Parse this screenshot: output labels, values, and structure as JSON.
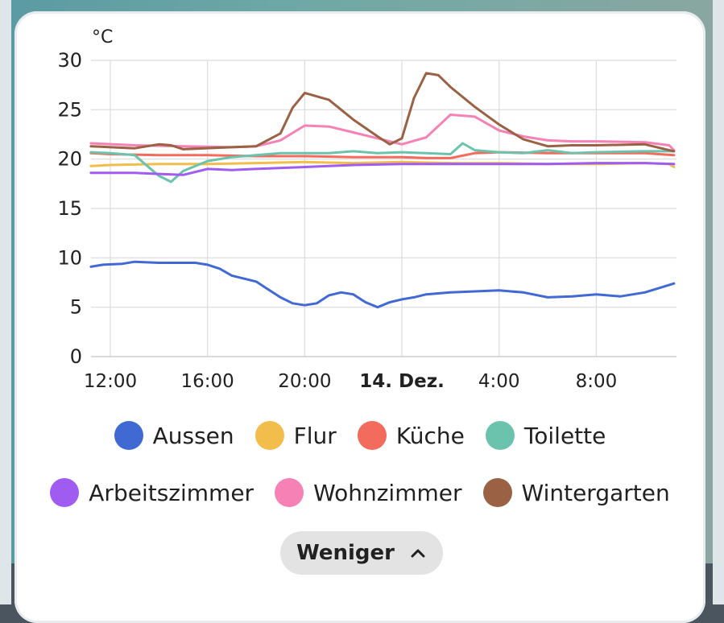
{
  "chart_data": {
    "type": "line",
    "ylabel": "°C",
    "ylim": [
      0,
      30
    ],
    "yticks": [
      "0",
      "5",
      "10",
      "15",
      "20",
      "25",
      "30"
    ],
    "xticks": [
      "12:00",
      "16:00",
      "20:00",
      "14. Dez.",
      "4:00",
      "8:00"
    ],
    "x_hours": [
      0,
      4,
      8,
      12,
      16,
      20
    ],
    "x_range": [
      -0.8,
      23.2
    ],
    "grid": true,
    "series": [
      {
        "name": "Aussen",
        "color": "#4169d4",
        "x": [
          -0.8,
          -0.3,
          0.5,
          1,
          2,
          3,
          3.5,
          4,
          4.5,
          5,
          6,
          6.5,
          7,
          7.5,
          8,
          8.5,
          9,
          9.5,
          10,
          10.5,
          11,
          11.5,
          12,
          12.5,
          13,
          14,
          15,
          16,
          17,
          18,
          19,
          20,
          21,
          22,
          23.2
        ],
        "y": [
          9.1,
          9.3,
          9.4,
          9.6,
          9.5,
          9.5,
          9.5,
          9.3,
          8.9,
          8.2,
          7.6,
          6.8,
          6.0,
          5.4,
          5.2,
          5.4,
          6.2,
          6.5,
          6.3,
          5.5,
          5.0,
          5.5,
          5.8,
          6.0,
          6.3,
          6.5,
          6.6,
          6.7,
          6.5,
          6.0,
          6.1,
          6.3,
          6.1,
          6.5,
          7.4
        ]
      },
      {
        "name": "Flur",
        "color": "#f2bd4b",
        "x": [
          -0.8,
          0,
          2,
          4,
          6,
          8,
          10,
          12,
          14,
          16,
          18,
          20,
          22,
          23,
          23.2
        ],
        "y": [
          19.3,
          19.4,
          19.5,
          19.5,
          19.6,
          19.7,
          19.6,
          19.7,
          19.6,
          19.6,
          19.5,
          19.5,
          19.6,
          19.5,
          19.2
        ]
      },
      {
        "name": "Küche",
        "color": "#f36b5c",
        "x": [
          -0.8,
          0,
          2,
          4,
          6,
          8,
          10,
          12,
          13,
          14,
          15,
          16,
          18,
          20,
          22,
          23.2
        ],
        "y": [
          20.6,
          20.5,
          20.4,
          20.4,
          20.3,
          20.3,
          20.2,
          20.2,
          20.1,
          20.1,
          20.6,
          20.7,
          20.6,
          20.6,
          20.6,
          20.4
        ]
      },
      {
        "name": "Toilette",
        "color": "#6cc3ad",
        "x": [
          -0.8,
          0,
          1,
          2,
          2.5,
          3,
          4,
          5,
          6,
          7,
          8,
          9,
          10,
          11,
          12,
          13,
          14,
          14.5,
          15,
          16,
          17,
          18,
          19,
          20,
          22,
          23.2
        ],
        "y": [
          20.7,
          20.6,
          20.4,
          18.3,
          17.7,
          18.8,
          19.8,
          20.2,
          20.4,
          20.6,
          20.6,
          20.6,
          20.8,
          20.6,
          20.7,
          20.6,
          20.5,
          21.6,
          20.9,
          20.7,
          20.6,
          20.9,
          20.6,
          20.7,
          20.8,
          20.8
        ]
      },
      {
        "name": "Arbeitszimmer",
        "color": "#a05cf0",
        "x": [
          -0.8,
          1,
          2,
          3,
          4,
          5,
          6,
          8,
          10,
          12,
          14,
          16,
          18,
          20,
          22,
          23.2
        ],
        "y": [
          18.6,
          18.6,
          18.5,
          18.4,
          19.0,
          18.9,
          19.0,
          19.2,
          19.4,
          19.5,
          19.5,
          19.5,
          19.5,
          19.6,
          19.6,
          19.5
        ]
      },
      {
        "name": "Wohnzimmer",
        "color": "#f682b5",
        "x": [
          -0.8,
          1,
          3,
          5,
          6,
          7,
          8,
          9,
          10,
          11,
          12,
          13,
          14,
          15,
          16,
          17,
          18,
          19,
          20,
          22,
          23,
          23.2
        ],
        "y": [
          21.6,
          21.4,
          21.3,
          21.2,
          21.3,
          21.9,
          23.4,
          23.3,
          22.7,
          22.1,
          21.5,
          22.2,
          24.5,
          24.3,
          22.9,
          22.3,
          21.9,
          21.8,
          21.8,
          21.7,
          21.4,
          20.9
        ]
      },
      {
        "name": "Wintergarten",
        "color": "#9b6144",
        "x": [
          -0.8,
          1,
          2,
          2.5,
          3,
          5,
          6,
          7,
          7.5,
          8,
          9,
          10,
          11,
          11.5,
          12,
          12.5,
          13,
          13.5,
          14,
          15,
          16,
          17,
          18,
          19,
          20,
          22,
          23,
          23.2
        ],
        "y": [
          21.3,
          21.1,
          21.5,
          21.4,
          21.0,
          21.2,
          21.3,
          22.6,
          25.2,
          26.7,
          26.0,
          24.0,
          22.3,
          21.5,
          22.1,
          26.2,
          28.7,
          28.5,
          27.3,
          25.3,
          23.5,
          22.0,
          21.3,
          21.4,
          21.4,
          21.5,
          20.9,
          20.8
        ]
      }
    ]
  },
  "button": {
    "label": "Weniger"
  }
}
